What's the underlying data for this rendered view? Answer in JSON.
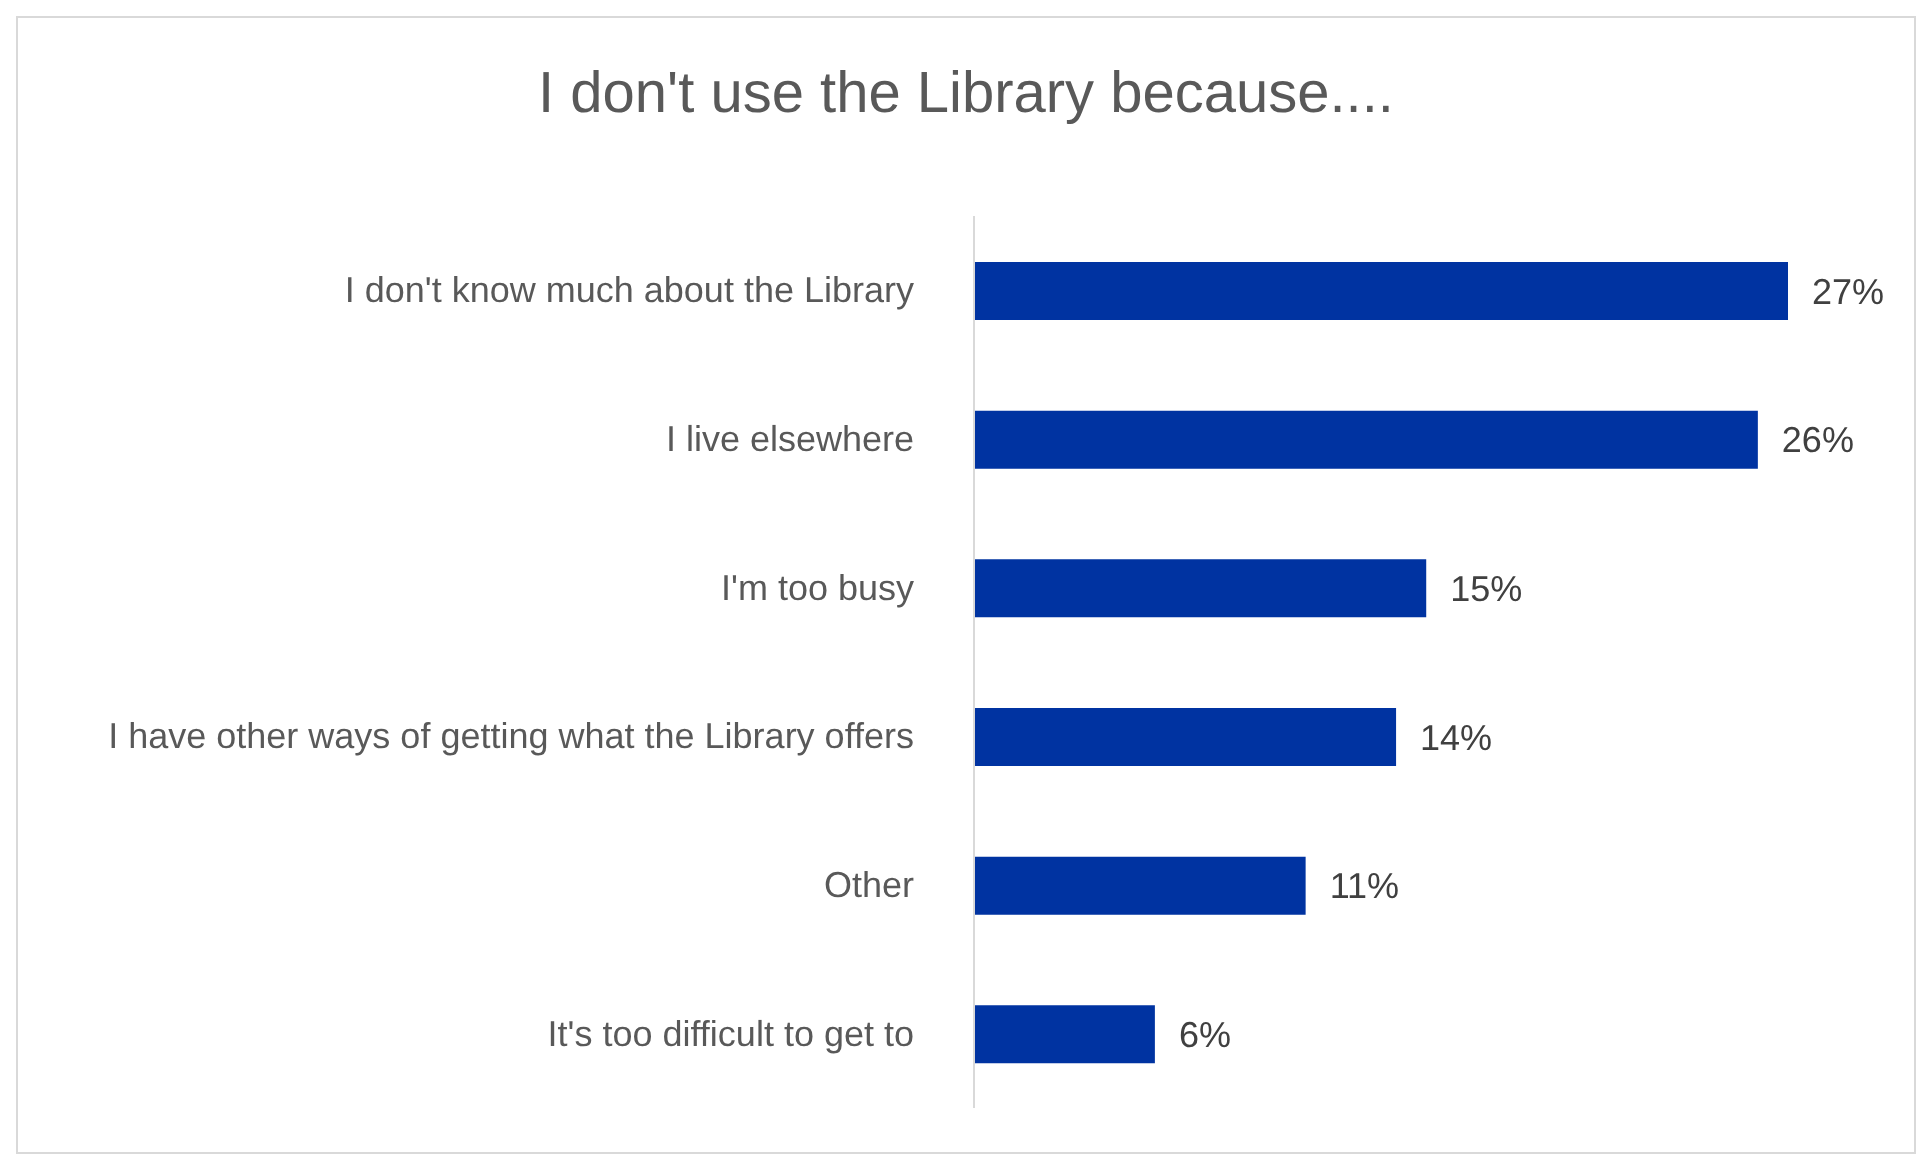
{
  "chart_data": {
    "type": "bar",
    "orientation": "horizontal",
    "title": "I don't use the Library because....",
    "categories": [
      "I don't know much about the Library",
      "I live elsewhere",
      "I'm too busy",
      "I have other ways of getting what the Library offers",
      "Other",
      "It's too difficult to get to"
    ],
    "values": [
      27,
      26,
      15,
      14,
      11,
      6
    ],
    "value_labels": [
      "27%",
      "26%",
      "15%",
      "14%",
      "11%",
      "6%"
    ],
    "color": "#0033a1"
  }
}
